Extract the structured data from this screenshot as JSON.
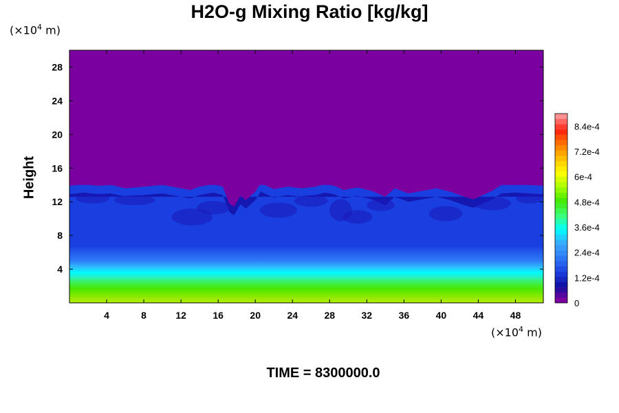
{
  "chart_data": {
    "type": "heatmap",
    "title": "H2O-g Mixing Ratio [kg/kg]",
    "ylabel": "Height",
    "xlabel": "",
    "x_unit": "(×10⁴ m)",
    "y_unit": "(×10⁴ m)",
    "unit_base": "(×10",
    "unit_exp": "4",
    "unit_suffix": " m)",
    "xlim": [
      0,
      51
    ],
    "ylim": [
      0,
      30
    ],
    "x_ticks": [
      4,
      8,
      12,
      16,
      20,
      24,
      28,
      32,
      36,
      40,
      44,
      48
    ],
    "x_tick_labels": [
      "4",
      "8",
      "12",
      "16",
      "20",
      "24",
      "28",
      "32",
      "36",
      "40",
      "44",
      "48"
    ],
    "y_ticks": [
      4,
      8,
      12,
      16,
      20,
      24,
      28
    ],
    "y_tick_labels": [
      "4",
      "8",
      "12",
      "16",
      "20",
      "24",
      "28"
    ],
    "colorbar": {
      "min": 0,
      "max": 0.0009,
      "ticks": [
        0,
        0.00012,
        0.00024,
        0.00036,
        0.00048,
        0.0006,
        0.00072,
        0.00084
      ],
      "tick_labels": [
        "0",
        "1.2e-4",
        "2.4e-4",
        "3.6e-4",
        "4.8e-4",
        "6e-4",
        "7.2e-4",
        "8.4e-4"
      ],
      "colormap": [
        "#7b00a0",
        "#1010a0",
        "#1a3fe0",
        "#2d7af5",
        "#3aa8ff",
        "#00ffff",
        "#3cff78",
        "#40e800",
        "#a6ff00",
        "#ffff00",
        "#ffc000",
        "#ff7a00",
        "#ff2010",
        "#ff9090"
      ]
    },
    "field_description_values": {
      "surface_value": 0.00057,
      "value_at_4": 0.00047,
      "value_at_7": 0.00029,
      "value_at_10": 0.00018,
      "mixing_layer_top_min": 9,
      "mixing_layer_top_max": 14,
      "above_layer_value": 0
    },
    "time_label": "TIME = 8300000.0"
  }
}
